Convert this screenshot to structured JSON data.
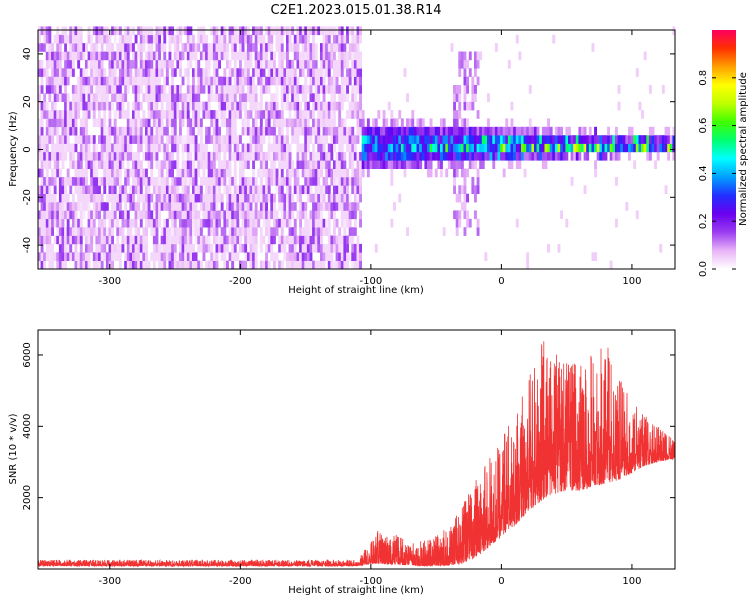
{
  "figure": {
    "title": "C2E1.2023.015.01.38.R14"
  },
  "chart_data": [
    {
      "type": "heatmap",
      "title": "C2E1.2023.015.01.38.R14",
      "xlabel": "Height of straight line (km)",
      "ylabel": "Frequency (Hz)",
      "xlim": [
        -355,
        133
      ],
      "ylim": [
        -50,
        50
      ],
      "x_ticks": [
        -300,
        -200,
        -100,
        0,
        100
      ],
      "x_tick_labels": [
        "-300",
        "-200",
        "-100",
        "0",
        "100"
      ],
      "y_ticks": [
        -40,
        -20,
        0,
        20,
        40
      ],
      "y_tick_labels": [
        "-40",
        "-20",
        "0",
        "20",
        "40"
      ],
      "colorbar": {
        "label": "Normalized spectral amplitude",
        "range": [
          0,
          1
        ],
        "ticks": [
          0.0,
          0.2,
          0.4,
          0.6,
          0.8
        ],
        "tick_labels": [
          "0.0",
          "0.2",
          "0.4",
          "0.6",
          "0.8"
        ],
        "colors": [
          "#ffffff",
          "#e9b3f7",
          "#9a3df0",
          "#6a00f0",
          "#2030ff",
          "#00a0ff",
          "#00ffff",
          "#00ff70",
          "#40ff00",
          "#c0ff00",
          "#ffff00",
          "#ffa000",
          "#ff3000",
          "#ff0060"
        ]
      },
      "regions": [
        {
          "x_range": [
            -355,
            -107
          ],
          "f_range": [
            -50,
            50
          ],
          "description": "broadband noise",
          "amplitude": [
            0.0,
            0.15
          ]
        },
        {
          "x_range": [
            -107,
            133
          ],
          "f_center": 0,
          "f_halfwidth": [
            10,
            3
          ],
          "amplitude": [
            0.15,
            0.9
          ]
        },
        {
          "x_range": [
            -38,
            -18
          ],
          "f_range": [
            -38,
            40
          ],
          "amplitude": [
            0.05,
            0.15
          ]
        }
      ],
      "grid": false
    },
    {
      "type": "line",
      "xlabel": "Height of straight line (km)",
      "ylabel": "SNR (10 * v/v)",
      "xlim": [
        -355,
        133
      ],
      "ylim": [
        0,
        6700
      ],
      "x_ticks": [
        -300,
        -200,
        -100,
        0,
        100
      ],
      "x_tick_labels": [
        "-300",
        "-200",
        "-100",
        "0",
        "100"
      ],
      "y_ticks": [
        2000,
        4000,
        6000
      ],
      "y_tick_labels": [
        "2000",
        "4000",
        "6000"
      ],
      "series_color": "#f03232",
      "grid": false,
      "envelope": {
        "x": [
          -355,
          -110,
          -100,
          -95,
          -80,
          -70,
          -60,
          -50,
          -40,
          -30,
          -20,
          -10,
          0,
          10,
          20,
          30,
          40,
          50,
          60,
          70,
          80,
          90,
          100,
          110,
          120,
          133
        ],
        "low": [
          80,
          80,
          150,
          150,
          120,
          100,
          80,
          80,
          100,
          150,
          300,
          600,
          900,
          1200,
          1600,
          1900,
          2100,
          2200,
          2200,
          2300,
          2400,
          2500,
          2700,
          2900,
          3000,
          3100
        ],
        "high": [
          260,
          260,
          800,
          1100,
          1000,
          700,
          800,
          1000,
          1200,
          1800,
          2600,
          3100,
          3700,
          4300,
          5200,
          6500,
          6100,
          6000,
          5800,
          6100,
          6400,
          5400,
          4800,
          4300,
          4000,
          3600
        ]
      }
    }
  ]
}
